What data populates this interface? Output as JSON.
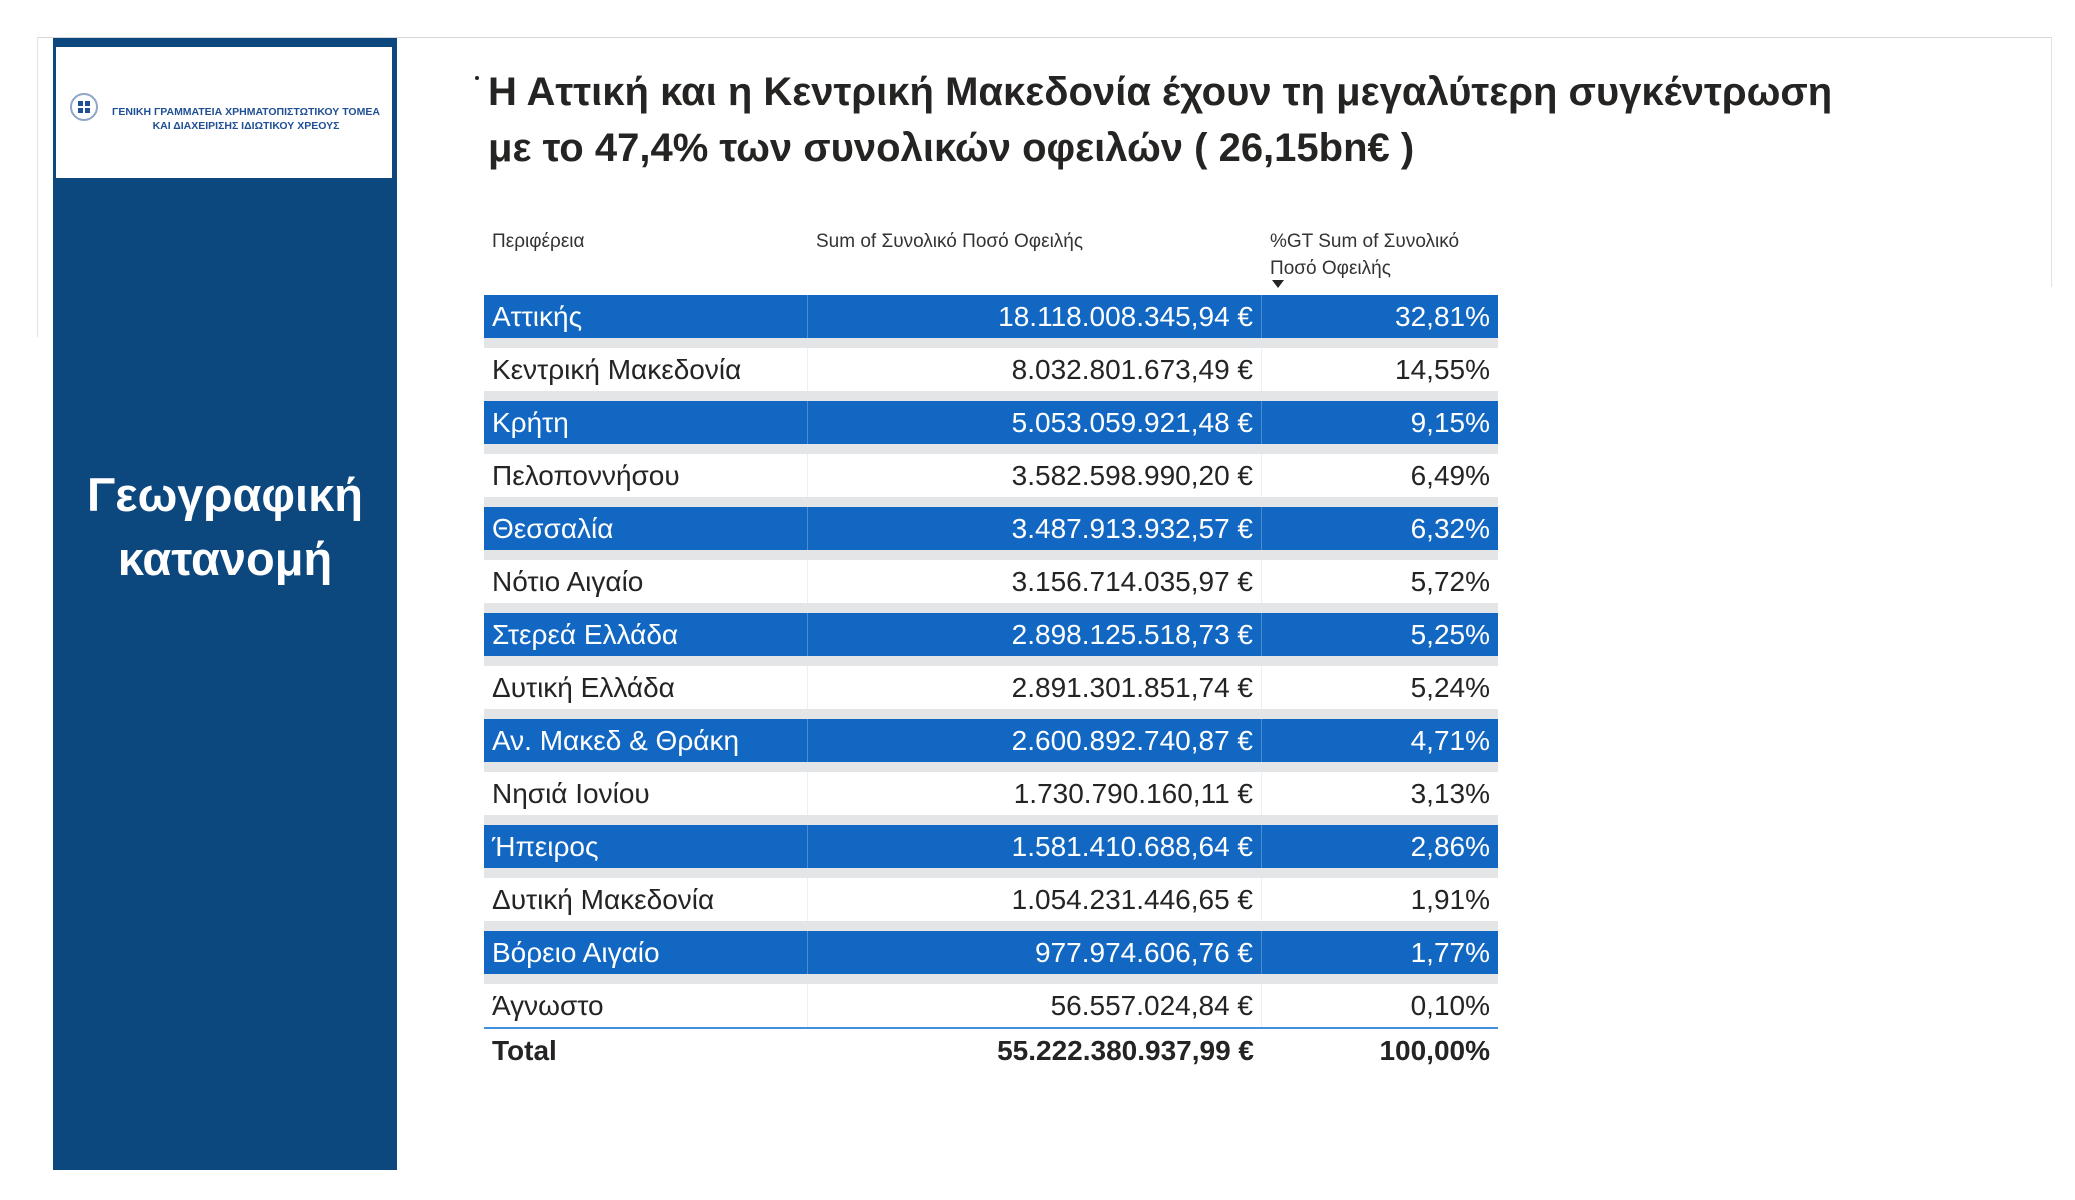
{
  "logo": {
    "line1": "ΓΕΝΙΚΗ ΓΡΑΜΜΑΤΕΙΑ ΧΡΗΜΑΤΟΠΙΣΤΩΤΙΚΟΥ ΤΟΜΕΑ",
    "line2": "ΚΑΙ ΔΙΑΧΕΙΡΙΣΗΣ ΙΔΙΩΤΙΚΟΥ ΧΡΕΟΥΣ"
  },
  "panel": {
    "title_line1": "Γεωγραφική",
    "title_line2": "κατανομή"
  },
  "heading": {
    "line1": "Η Αττική και η Κεντρική Μακεδονία  έχουν τη μεγαλύτερη συγκέντρωση",
    "line2": "με το 47,4% των συνολικών οφειλών ( 26,15bn€ )"
  },
  "colors": {
    "panel": "#0c477e",
    "row_highlight": "#1167c1",
    "separator": "#e4e5e6"
  },
  "table": {
    "headers": [
      "Περιφέρεια",
      "Sum of Συνολικό Ποσό Οφειλής",
      "%GT Sum of Συνολικό Ποσό Οφειλής"
    ],
    "sort_column": 2,
    "sort_direction": "descending",
    "rows": [
      [
        "Αττικής",
        "18.118.008.345,94 €",
        "32,81%"
      ],
      [
        "Κεντρική Μακεδονία",
        "8.032.801.673,49 €",
        "14,55%"
      ],
      [
        "Κρήτη",
        "5.053.059.921,48 €",
        "9,15%"
      ],
      [
        "Πελοποννήσου",
        "3.582.598.990,20 €",
        "6,49%"
      ],
      [
        "Θεσσαλία",
        "3.487.913.932,57 €",
        "6,32%"
      ],
      [
        "Νότιο Αιγαίο",
        "3.156.714.035,97 €",
        "5,72%"
      ],
      [
        "Στερεά Ελλάδα",
        "2.898.125.518,73 €",
        "5,25%"
      ],
      [
        "Δυτική Ελλάδα",
        "2.891.301.851,74 €",
        "5,24%"
      ],
      [
        "Αν. Μακεδ & Θράκη",
        "2.600.892.740,87 €",
        "4,71%"
      ],
      [
        "Νησιά Ιονίου",
        "1.730.790.160,11 €",
        "3,13%"
      ],
      [
        "Ήπειρος",
        "1.581.410.688,64 €",
        "2,86%"
      ],
      [
        "Δυτική Μακεδονία",
        "1.054.231.446,65 €",
        "1,91%"
      ],
      [
        "Βόρειο Αιγαίο",
        "977.974.606,76 €",
        "1,77%"
      ],
      [
        "Άγνωστο",
        "56.557.024,84 €",
        "0,10%"
      ]
    ],
    "total": [
      "Total",
      "55.222.380.937,99 €",
      "100,00%"
    ]
  }
}
